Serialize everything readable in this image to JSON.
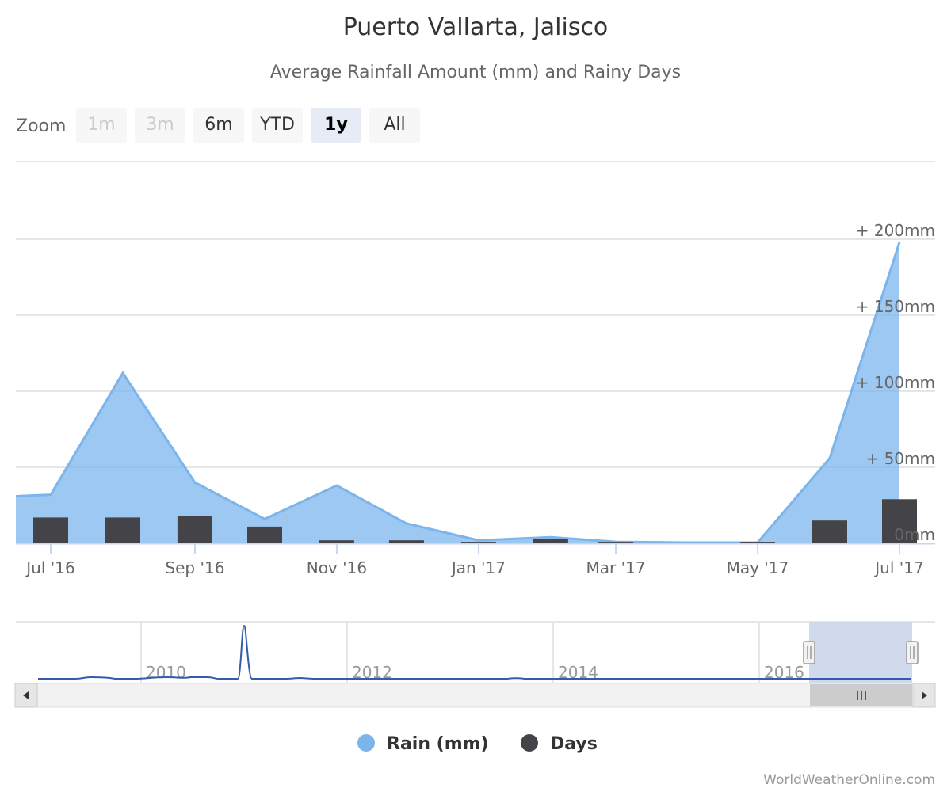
{
  "title": "Puerto Vallarta, Jalisco",
  "subtitle": "Average Rainfall Amount (mm) and Rainy Days",
  "range_selector": {
    "label": "Zoom",
    "buttons": [
      {
        "label": "1m",
        "state": "disabled"
      },
      {
        "label": "3m",
        "state": "disabled"
      },
      {
        "label": "6m",
        "state": "normal"
      },
      {
        "label": "YTD",
        "state": "normal"
      },
      {
        "label": "1y",
        "state": "selected"
      },
      {
        "label": "All",
        "state": "normal"
      }
    ]
  },
  "chart_data": {
    "type": "area",
    "x_tick_labels": [
      "Jul '16",
      "Sep '16",
      "Nov '16",
      "Jan '17",
      "Mar '17",
      "May '17",
      "Jul '17"
    ],
    "y_tick_labels": [
      "0mm",
      "+ 50mm",
      "+ 100mm",
      "+ 150mm",
      "+ 200mm"
    ],
    "ylim": [
      0,
      200
    ],
    "grid": true,
    "legend_position": "bottom-center",
    "series": [
      {
        "name": "Rain (mm)",
        "type": "area",
        "color": "#7cb5ec",
        "points": [
          {
            "x": "2016-06-15",
            "y": 31
          },
          {
            "x": "2016-07-01",
            "y": 32
          },
          {
            "x": "2016-08-01",
            "y": 112
          },
          {
            "x": "2016-09-01",
            "y": 40
          },
          {
            "x": "2016-10-01",
            "y": 16
          },
          {
            "x": "2016-11-01",
            "y": 38
          },
          {
            "x": "2016-12-01",
            "y": 13
          },
          {
            "x": "2017-01-01",
            "y": 2
          },
          {
            "x": "2017-02-01",
            "y": 4
          },
          {
            "x": "2017-03-01",
            "y": 1
          },
          {
            "x": "2017-04-01",
            "y": 0.5
          },
          {
            "x": "2017-05-01",
            "y": 0.5
          },
          {
            "x": "2017-06-01",
            "y": 56
          },
          {
            "x": "2017-07-01",
            "y": 198
          }
        ]
      },
      {
        "name": "Days",
        "type": "bar",
        "color": "#434348",
        "points": [
          {
            "x": "2016-07-01",
            "y": 17
          },
          {
            "x": "2016-08-01",
            "y": 17
          },
          {
            "x": "2016-09-01",
            "y": 18
          },
          {
            "x": "2016-10-01",
            "y": 11
          },
          {
            "x": "2016-11-01",
            "y": 2
          },
          {
            "x": "2016-12-01",
            "y": 2
          },
          {
            "x": "2017-01-01",
            "y": 1
          },
          {
            "x": "2017-02-01",
            "y": 3
          },
          {
            "x": "2017-03-01",
            "y": 1
          },
          {
            "x": "2017-05-01",
            "y": 1
          },
          {
            "x": "2017-06-01",
            "y": 15
          },
          {
            "x": "2017-07-01",
            "y": 29
          }
        ]
      }
    ]
  },
  "navigator": {
    "labels": [
      "2010",
      "2012",
      "2014",
      "2016"
    ],
    "series_color": "#335cad",
    "selection_color": "#ccd6eb"
  },
  "legend": {
    "items": [
      {
        "label": "Rain (mm)",
        "color": "#7cb5ec"
      },
      {
        "label": "Days",
        "color": "#434348"
      }
    ]
  },
  "credits": "WorldWeatherOnline.com"
}
